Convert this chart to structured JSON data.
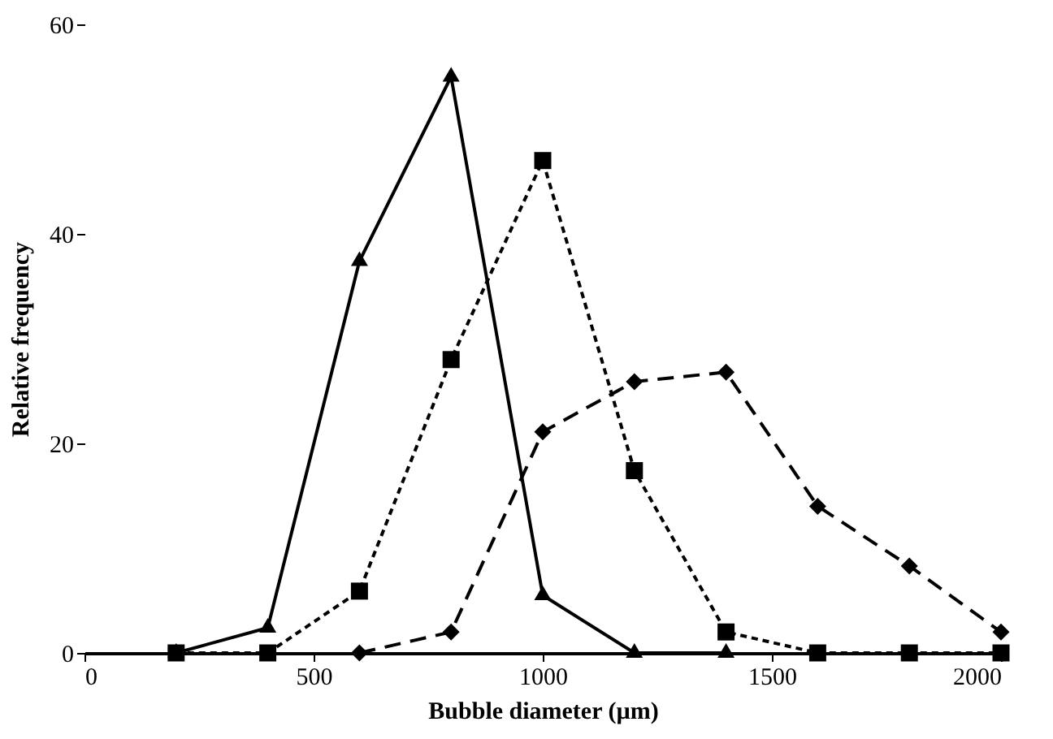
{
  "chart_data": {
    "type": "line",
    "xlabel": "Bubble diameter (µm)",
    "ylabel": "Relative frequency",
    "xlim": [
      0,
      2000
    ],
    "xticks": [
      0,
      500,
      1000,
      1500,
      2000
    ],
    "ylim": [
      0,
      60
    ],
    "yticks": [
      0,
      20,
      40,
      60
    ],
    "grid": false,
    "series": [
      {
        "color": "#000000",
        "marker": "triangle",
        "line_style": "solid",
        "x": [
          200,
          400,
          600,
          800,
          1000,
          1200,
          1400
        ],
        "values": [
          0,
          2.4,
          37.4,
          55,
          5.5,
          0,
          0
        ]
      },
      {
        "color": "#000000",
        "marker": "square",
        "line_style": "dotted",
        "x": [
          200,
          400,
          600,
          800,
          1000,
          1200,
          1400,
          1600,
          1800,
          2000
        ],
        "values": [
          0,
          0,
          5.9,
          28,
          47,
          17.4,
          2,
          0,
          0,
          0
        ]
      },
      {
        "color": "#000000",
        "marker": "diamond",
        "line_style": "dashed",
        "x": [
          600,
          800,
          1000,
          1200,
          1400,
          1600,
          1800,
          2000
        ],
        "values": [
          0,
          2,
          21.1,
          25.9,
          26.8,
          14,
          8.3,
          2
        ]
      }
    ]
  }
}
